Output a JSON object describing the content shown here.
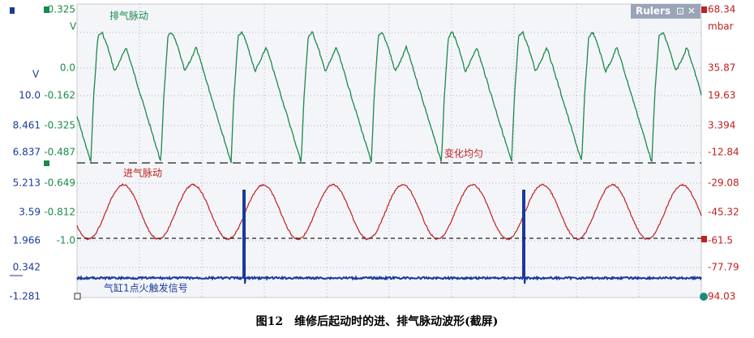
{
  "axes": {
    "left_outer": {
      "unit": "V",
      "ticks": [
        "10.0",
        "8.461",
        "6.837",
        "5.213",
        "3.59",
        "1.966",
        "0.342",
        "-1.281"
      ]
    },
    "left_inner": {
      "top": "0.325",
      "unit": "V",
      "ticks": [
        "0.0",
        "-0.162",
        "-0.325",
        "-0.487",
        "-0.649",
        "-0.812",
        "-1.0"
      ]
    },
    "right": {
      "top": "68.34",
      "unit": "mbar",
      "ticks": [
        "35.87",
        "19.63",
        "3.394",
        "-12.84",
        "-29.08",
        "-45.32",
        "-61.5",
        "-77.79",
        "94.03"
      ]
    }
  },
  "annotations": {
    "exhaust": "排气脉动",
    "uniform": "变化均匀",
    "intake": "进气脉动",
    "trigger": "气缸1点火触发信号"
  },
  "toolbar": {
    "title": "Rulers"
  },
  "caption": "图12　维修后起动时的进、排气脉动波形(截屏)"
}
